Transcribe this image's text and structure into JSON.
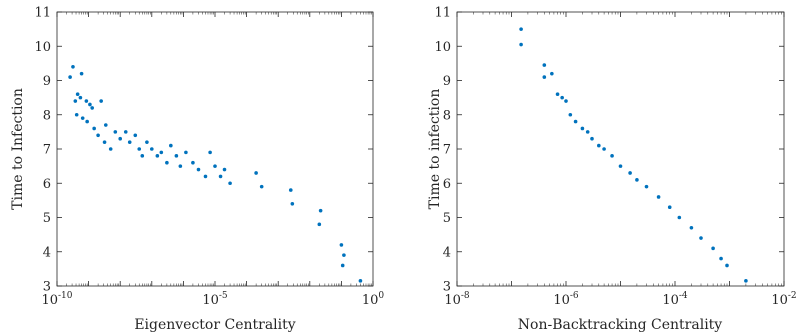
{
  "chart_data": [
    {
      "type": "scatter",
      "xscale": "log",
      "xlim": [
        1e-10,
        1
      ],
      "ylim": [
        3,
        11
      ],
      "xlabel": "Eigenvector Centrality",
      "ylabel": "Time to Infection",
      "grid": false,
      "marker_color": "#0072BD",
      "x_ticks": [
        {
          "base": "10",
          "exp": "-10",
          "value": 1e-10
        },
        {
          "base": "10",
          "exp": "-5",
          "value": 1e-05
        },
        {
          "base": "10",
          "exp": "0",
          "value": 1
        }
      ],
      "y_ticks": [
        "3",
        "4",
        "5",
        "6",
        "7",
        "8",
        "9",
        "10",
        "11"
      ],
      "series": [
        {
          "points": [
            [
              3.2e-10,
              9.4
            ],
            [
              2.6e-10,
              9.1
            ],
            [
              6e-10,
              9.2
            ],
            [
              4.5e-10,
              8.6
            ],
            [
              3.8e-10,
              8.4
            ],
            [
              5.5e-10,
              8.5
            ],
            [
              8.5e-10,
              8.4
            ],
            [
              1.1e-09,
              8.3
            ],
            [
              1.3e-09,
              8.2
            ],
            [
              4.2e-10,
              8.0
            ],
            [
              6.5e-10,
              7.9
            ],
            [
              9e-10,
              7.8
            ],
            [
              1.5e-09,
              7.6
            ],
            [
              2.5e-09,
              8.4
            ],
            [
              3.5e-09,
              7.7
            ],
            [
              2e-09,
              7.4
            ],
            [
              3.2e-09,
              7.2
            ],
            [
              5e-09,
              7.0
            ],
            [
              7e-09,
              7.5
            ],
            [
              1e-08,
              7.3
            ],
            [
              1.5e-08,
              7.5
            ],
            [
              2e-08,
              7.2
            ],
            [
              3e-08,
              7.4
            ],
            [
              4e-08,
              7.0
            ],
            [
              5e-08,
              6.8
            ],
            [
              7e-08,
              7.2
            ],
            [
              1e-07,
              7.0
            ],
            [
              1.5e-07,
              6.8
            ],
            [
              2e-07,
              6.9
            ],
            [
              3e-07,
              6.6
            ],
            [
              4e-07,
              7.1
            ],
            [
              6e-07,
              6.8
            ],
            [
              8e-07,
              6.5
            ],
            [
              1.2e-06,
              6.9
            ],
            [
              2e-06,
              6.6
            ],
            [
              3e-06,
              6.4
            ],
            [
              5e-06,
              6.2
            ],
            [
              7e-06,
              6.9
            ],
            [
              1e-05,
              6.5
            ],
            [
              1.5e-05,
              6.2
            ],
            [
              2e-05,
              6.4
            ],
            [
              3e-05,
              6.0
            ],
            [
              0.0002,
              6.3
            ],
            [
              0.0003,
              5.9
            ],
            [
              0.0025,
              5.8
            ],
            [
              0.0028,
              5.4
            ],
            [
              0.02,
              4.8
            ],
            [
              0.022,
              5.2
            ],
            [
              0.1,
              4.2
            ],
            [
              0.12,
              3.9
            ],
            [
              0.11,
              3.6
            ],
            [
              0.4,
              3.15
            ]
          ]
        }
      ]
    },
    {
      "type": "scatter",
      "xscale": "log",
      "xlim": [
        1e-08,
        0.01
      ],
      "ylim": [
        3,
        11
      ],
      "xlabel": "Non-Backtracking Centrality",
      "ylabel": "Time to infection",
      "grid": false,
      "marker_color": "#0072BD",
      "x_ticks": [
        {
          "base": "10",
          "exp": "-8",
          "value": 1e-08
        },
        {
          "base": "10",
          "exp": "-6",
          "value": 1e-06
        },
        {
          "base": "10",
          "exp": "-4",
          "value": 0.0001
        },
        {
          "base": "10",
          "exp": "-2",
          "value": 0.01
        }
      ],
      "y_ticks": [
        "3",
        "4",
        "5",
        "6",
        "7",
        "8",
        "9",
        "10",
        "11"
      ],
      "series": [
        {
          "points": [
            [
              1.5e-07,
              10.5
            ],
            [
              1.5e-07,
              10.05
            ],
            [
              4e-07,
              9.45
            ],
            [
              4e-07,
              9.1
            ],
            [
              5.5e-07,
              9.2
            ],
            [
              7e-07,
              8.6
            ],
            [
              8.5e-07,
              8.5
            ],
            [
              1e-06,
              8.4
            ],
            [
              1.2e-06,
              8.0
            ],
            [
              1.5e-06,
              7.8
            ],
            [
              2e-06,
              7.6
            ],
            [
              2.5e-06,
              7.5
            ],
            [
              3e-06,
              7.3
            ],
            [
              4e-06,
              7.1
            ],
            [
              5e-06,
              7.0
            ],
            [
              7e-06,
              6.8
            ],
            [
              1e-05,
              6.5
            ],
            [
              1.5e-05,
              6.3
            ],
            [
              2e-05,
              6.1
            ],
            [
              3e-05,
              5.9
            ],
            [
              5e-05,
              5.6
            ],
            [
              8e-05,
              5.3
            ],
            [
              0.00012,
              5.0
            ],
            [
              0.0002,
              4.7
            ],
            [
              0.0003,
              4.4
            ],
            [
              0.0005,
              4.1
            ],
            [
              0.0007,
              3.8
            ],
            [
              0.0009,
              3.6
            ],
            [
              0.002,
              3.15
            ]
          ]
        }
      ]
    }
  ]
}
